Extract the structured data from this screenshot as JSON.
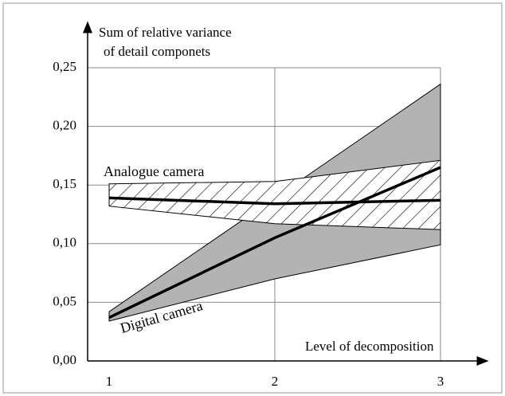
{
  "chart_data": {
    "type": "band-line",
    "ylabel": [
      "Sum of relative variance",
      "of detail componets"
    ],
    "xlabel": "Level of decomposition",
    "x": [
      1,
      2,
      3
    ],
    "xlim": [
      0.87,
      3
    ],
    "xticks": [
      1,
      2,
      3
    ],
    "ylim": [
      0,
      0.25
    ],
    "yticks": [
      {
        "value": 0,
        "label": "0,00"
      },
      {
        "value": 0.05,
        "label": "0,05"
      },
      {
        "value": 0.1,
        "label": "0,10"
      },
      {
        "value": 0.15,
        "label": "0,15"
      },
      {
        "value": 0.2,
        "label": "0,20"
      },
      {
        "value": 0.25,
        "label": "0,25"
      }
    ],
    "grid": true,
    "series": [
      {
        "name": "Analogue camera",
        "color": "#000000",
        "band_fill": "hatch",
        "values": [
          0.139,
          0.134,
          0.137
        ],
        "upper": [
          0.151,
          0.153,
          0.171
        ],
        "lower": [
          0.132,
          0.117,
          0.112
        ]
      },
      {
        "name": "Digital camera",
        "color": "#000000",
        "band_fill": "#b3b3b3",
        "values": [
          0.037,
          0.105,
          0.165
        ],
        "upper": [
          0.042,
          0.139,
          0.236
        ],
        "lower": [
          0.034,
          0.07,
          0.099
        ]
      }
    ]
  }
}
